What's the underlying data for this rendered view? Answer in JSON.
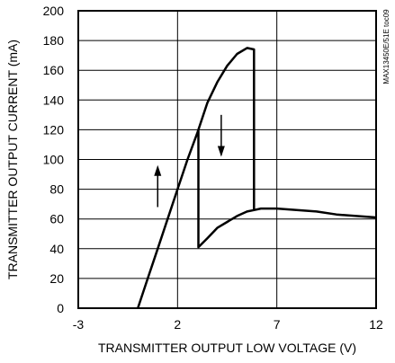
{
  "chart_data": {
    "type": "line",
    "title": "",
    "xlabel": "TRANSMITTER OUTPUT LOW VOLTAGE (V)",
    "ylabel": "TRANSMITTER OUTPUT CURRENT (mA)",
    "xlim": [
      -3,
      12
    ],
    "ylim": [
      0,
      200
    ],
    "x_ticks": [
      -3,
      2,
      7,
      12
    ],
    "y_ticks": [
      0,
      20,
      40,
      60,
      80,
      100,
      120,
      140,
      160,
      180,
      200
    ],
    "grid": true,
    "annotation": "MAX13450E/51E toc09",
    "series": [
      {
        "x": [
          0.0,
          0.5,
          1.0,
          1.5,
          2.0,
          2.5,
          3.0,
          3.05,
          3.05,
          3.5,
          4.0,
          4.5,
          5.0,
          5.5,
          5.85,
          6.2,
          7.0,
          8.0,
          9.0,
          10.0,
          11.0,
          12.0
        ],
        "y": [
          0,
          20,
          40,
          60,
          80,
          100,
          118,
          120,
          41,
          47,
          54,
          58,
          62,
          65,
          66,
          67,
          67,
          66,
          65,
          63,
          62,
          61
        ]
      },
      {
        "x": [
          3.05,
          3.5,
          4.0,
          4.5,
          5.0,
          5.5,
          5.85,
          5.85
        ],
        "y": [
          120,
          138,
          152,
          163,
          171,
          175,
          174,
          66
        ]
      }
    ],
    "arrows": [
      {
        "direction": "up",
        "x": 1.0,
        "y_from": 68,
        "y_to": 95
      },
      {
        "direction": "down",
        "x": 4.2,
        "y_from": 130,
        "y_to": 103
      }
    ]
  }
}
